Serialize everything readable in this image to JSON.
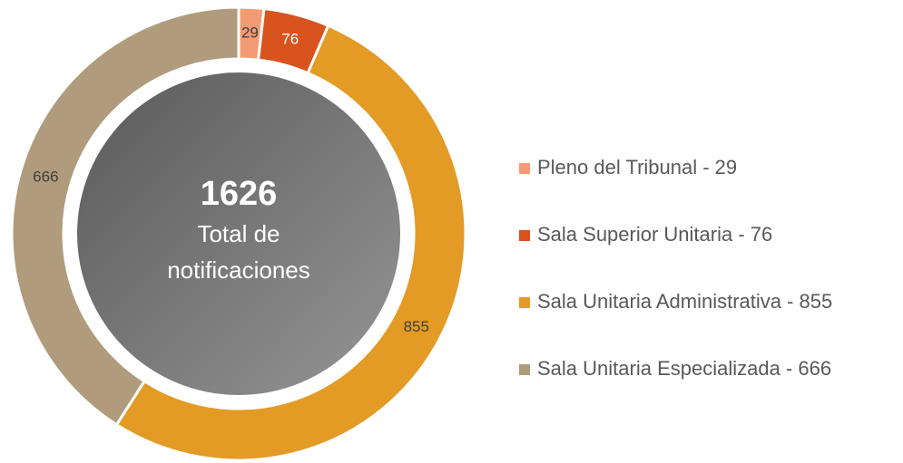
{
  "chart_data": {
    "type": "donut",
    "categories": [
      "Pleno del Tribunal - 29",
      "Sala Superior Unitaria - 76",
      "Sala Unitaria Administrativa - 855",
      "Sala Unitaria Especializada - 666"
    ],
    "values": [
      29,
      76,
      855,
      666
    ],
    "colors": [
      "#f29b74",
      "#d9531e",
      "#e39b26",
      "#b09c7c"
    ],
    "total": 1626,
    "total_label": "Total de notificaciones",
    "legend": "right"
  }
}
